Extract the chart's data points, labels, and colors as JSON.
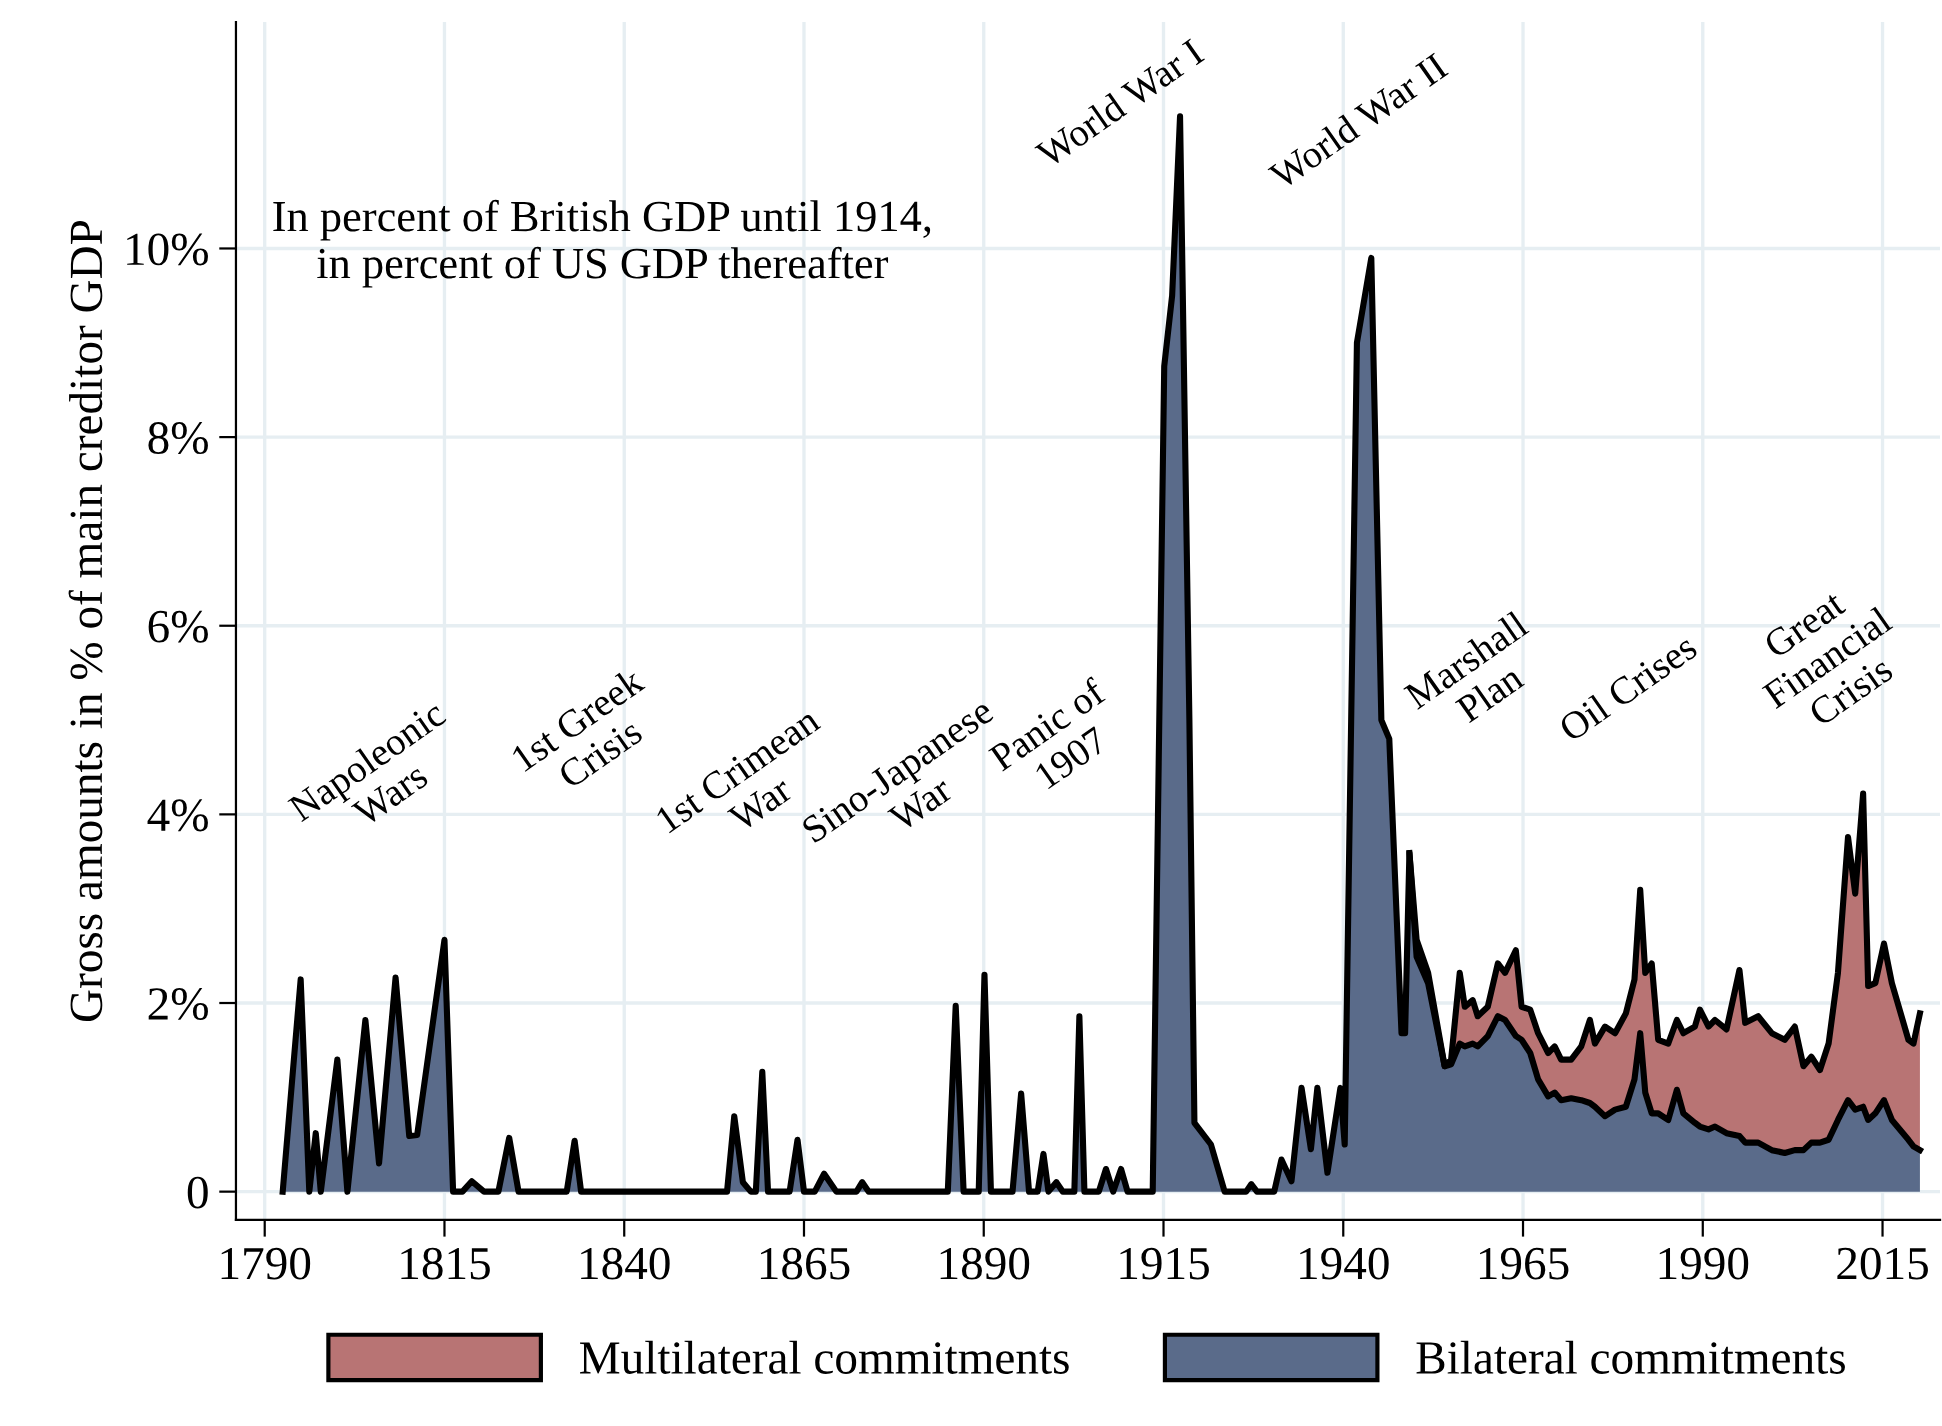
{
  "chart_data": {
    "type": "area",
    "stacked": true,
    "ylabel": "Gross amounts in % of main creditor GDP",
    "x": [
      1792.5,
      1795,
      1796.2,
      1797.1,
      1797.8,
      1800.1,
      1801.5,
      1804,
      1805.9,
      1808.2,
      1810.1,
      1811.2,
      1815,
      1816.2,
      1817.5,
      1818.8,
      1820.5,
      1822.5,
      1824,
      1825.3,
      1832,
      1833.1,
      1834,
      1854.3,
      1855.3,
      1856.5,
      1857.6,
      1858.3,
      1859.2,
      1860,
      1863,
      1864.1,
      1865,
      1866.5,
      1867.8,
      1869.5,
      1872.3,
      1873.1,
      1874,
      1885,
      1886.1,
      1887.2,
      1889.3,
      1890.1,
      1891,
      1894,
      1895.2,
      1896.3,
      1897.5,
      1898.3,
      1899,
      1900.1,
      1901,
      1902.6,
      1903.3,
      1904,
      1906,
      1907,
      1908,
      1909.1,
      1910,
      1913.5,
      1915.1,
      1916.2,
      1917.3,
      1918.6,
      1919.3,
      1921.6,
      1923.5,
      1926.5,
      1927.2,
      1928,
      1930.4,
      1931.4,
      1932.8,
      1934.2,
      1935.5,
      1936.4,
      1937.8,
      1939.6,
      1940.2,
      1941.9,
      1943.9,
      1945.3,
      1946.4,
      1948.1,
      1948.6,
      1949.2,
      1950.2,
      1951.8,
      1954.1,
      1955.0,
      1956.2,
      1956.9,
      1958.0,
      1958.7,
      1960.1,
      1961.5,
      1962.5,
      1964.0,
      1964.8,
      1966.0,
      1967.1,
      1968.5,
      1969.4,
      1970.3,
      1971.7,
      1973.1,
      1974.3,
      1975.0,
      1976.4,
      1977.8,
      1979.3,
      1980.5,
      1981.3,
      1982.0,
      1982.9,
      1983.8,
      1985.2,
      1986.4,
      1987.3,
      1988.9,
      1989.6,
      1990.8,
      1991.7,
      1993.3,
      1995.1,
      1995.9,
      1997.7,
      1999.6,
      2001.4,
      2002.8,
      2004.0,
      2005.1,
      2006.3,
      2007.5,
      2008.8,
      2010.2,
      2011.2,
      2012.3,
      2013.0,
      2014.0,
      2015.2,
      2016.3,
      2018.6,
      2019.3,
      2020.2
    ],
    "series": [
      {
        "name": "Bilateral commitments",
        "color": "#5a6b8a",
        "values": [
          0,
          2.25,
          0,
          0.62,
          0,
          1.4,
          0,
          1.82,
          0.3,
          2.27,
          0.59,
          0.6,
          2.67,
          0,
          0,
          0.11,
          0,
          0,
          0.57,
          0,
          0,
          0.54,
          0,
          0,
          0.8,
          0.1,
          0,
          0,
          1.27,
          0,
          0,
          0.55,
          0,
          0,
          0.19,
          0,
          0,
          0.1,
          0,
          0,
          1.97,
          0,
          0,
          2.3,
          0,
          0,
          1.04,
          0,
          0,
          0.4,
          0,
          0.1,
          0,
          0,
          1.86,
          0,
          0,
          0.24,
          0,
          0.24,
          0,
          0,
          8.75,
          9.5,
          11.4,
          5.0,
          0.73,
          0.5,
          0,
          0,
          0.08,
          0,
          0,
          0.34,
          0.11,
          1.1,
          0.45,
          1.1,
          0.2,
          1.1,
          0.5,
          9.0,
          9.9,
          5.0,
          4.8,
          1.68,
          1.68,
          3.59,
          2.49,
          2.21,
          1.33,
          1.35,
          1.57,
          1.54,
          1.57,
          1.54,
          1.65,
          1.86,
          1.82,
          1.65,
          1.61,
          1.47,
          1.19,
          1.01,
          1.05,
          0.97,
          0.99,
          0.97,
          0.94,
          0.9,
          0.8,
          0.87,
          0.9,
          1.19,
          1.68,
          1.05,
          0.83,
          0.83,
          0.76,
          1.08,
          0.83,
          0.73,
          0.69,
          0.66,
          0.69,
          0.62,
          0.59,
          0.52,
          0.52,
          0.44,
          0.41,
          0.44,
          0.44,
          0.52,
          0.52,
          0.55,
          0.76,
          0.97,
          0.87,
          0.9,
          0.76,
          0.83,
          0.97,
          0.76,
          0.55,
          0.48,
          0.44
        ]
      },
      {
        "name": "Multilateral commitments",
        "color": "#b87474",
        "values": [
          null,
          null,
          null,
          null,
          null,
          null,
          null,
          null,
          null,
          null,
          null,
          null,
          null,
          null,
          null,
          null,
          null,
          null,
          null,
          null,
          null,
          null,
          null,
          null,
          null,
          null,
          null,
          null,
          null,
          null,
          null,
          null,
          null,
          null,
          null,
          null,
          null,
          null,
          null,
          null,
          null,
          null,
          null,
          null,
          null,
          null,
          null,
          null,
          null,
          null,
          null,
          null,
          null,
          null,
          null,
          null,
          null,
          null,
          null,
          null,
          null,
          null,
          null,
          null,
          null,
          null,
          null,
          null,
          null,
          null,
          null,
          null,
          null,
          null,
          null,
          null,
          null,
          null,
          null,
          null,
          null,
          null,
          null,
          null,
          null,
          null,
          null,
          0,
          0.18,
          0.11,
          0,
          0.05,
          0.75,
          0.42,
          0.46,
          0.32,
          0.31,
          0.56,
          0.5,
          0.91,
          0.35,
          0.46,
          0.49,
          0.46,
          0.49,
          0.43,
          0.41,
          0.57,
          0.88,
          0.67,
          0.95,
          0.81,
          0.99,
          1.06,
          1.52,
          1.27,
          1.59,
          0.78,
          0.81,
          0.74,
          0.85,
          1.02,
          1.24,
          1.09,
          1.13,
          1.1,
          1.76,
          1.27,
          1.34,
          1.24,
          1.2,
          1.31,
          0.89,
          0.91,
          0.77,
          1.02,
          1.56,
          2.79,
          2.29,
          3.32,
          1.42,
          1.38,
          1.66,
          1.45,
          1.06,
          1.09,
          1.45
        ]
      }
    ],
    "xlim": [
      1786,
      2023
    ],
    "ylim": [
      -0.3,
      12.4
    ],
    "xticks": [
      1790,
      1815,
      1840,
      1865,
      1890,
      1915,
      1940,
      1965,
      1990,
      2015
    ],
    "yticks": [
      0,
      {
        "value": 2,
        "label": "2%"
      },
      {
        "value": 4,
        "label": "4%"
      },
      {
        "value": 6,
        "label": "6%"
      },
      {
        "value": 8,
        "label": "8%"
      },
      {
        "value": 10,
        "label": "10%"
      }
    ],
    "grid": true,
    "legend": "bottom",
    "annotations": [
      "In percent of British GDP until 1914,\nin percent of US GDP thereafter",
      "Napoleonic\nWars",
      "1st Greek\nCrisis",
      "1st Crimean\nWar",
      "Sino-Japanese\nWar",
      "Panic of\n1907",
      "World War I",
      "World War II",
      "Marshall\nPlan",
      "Oil Crises",
      "Great\nFinancial\nCrisis"
    ]
  }
}
